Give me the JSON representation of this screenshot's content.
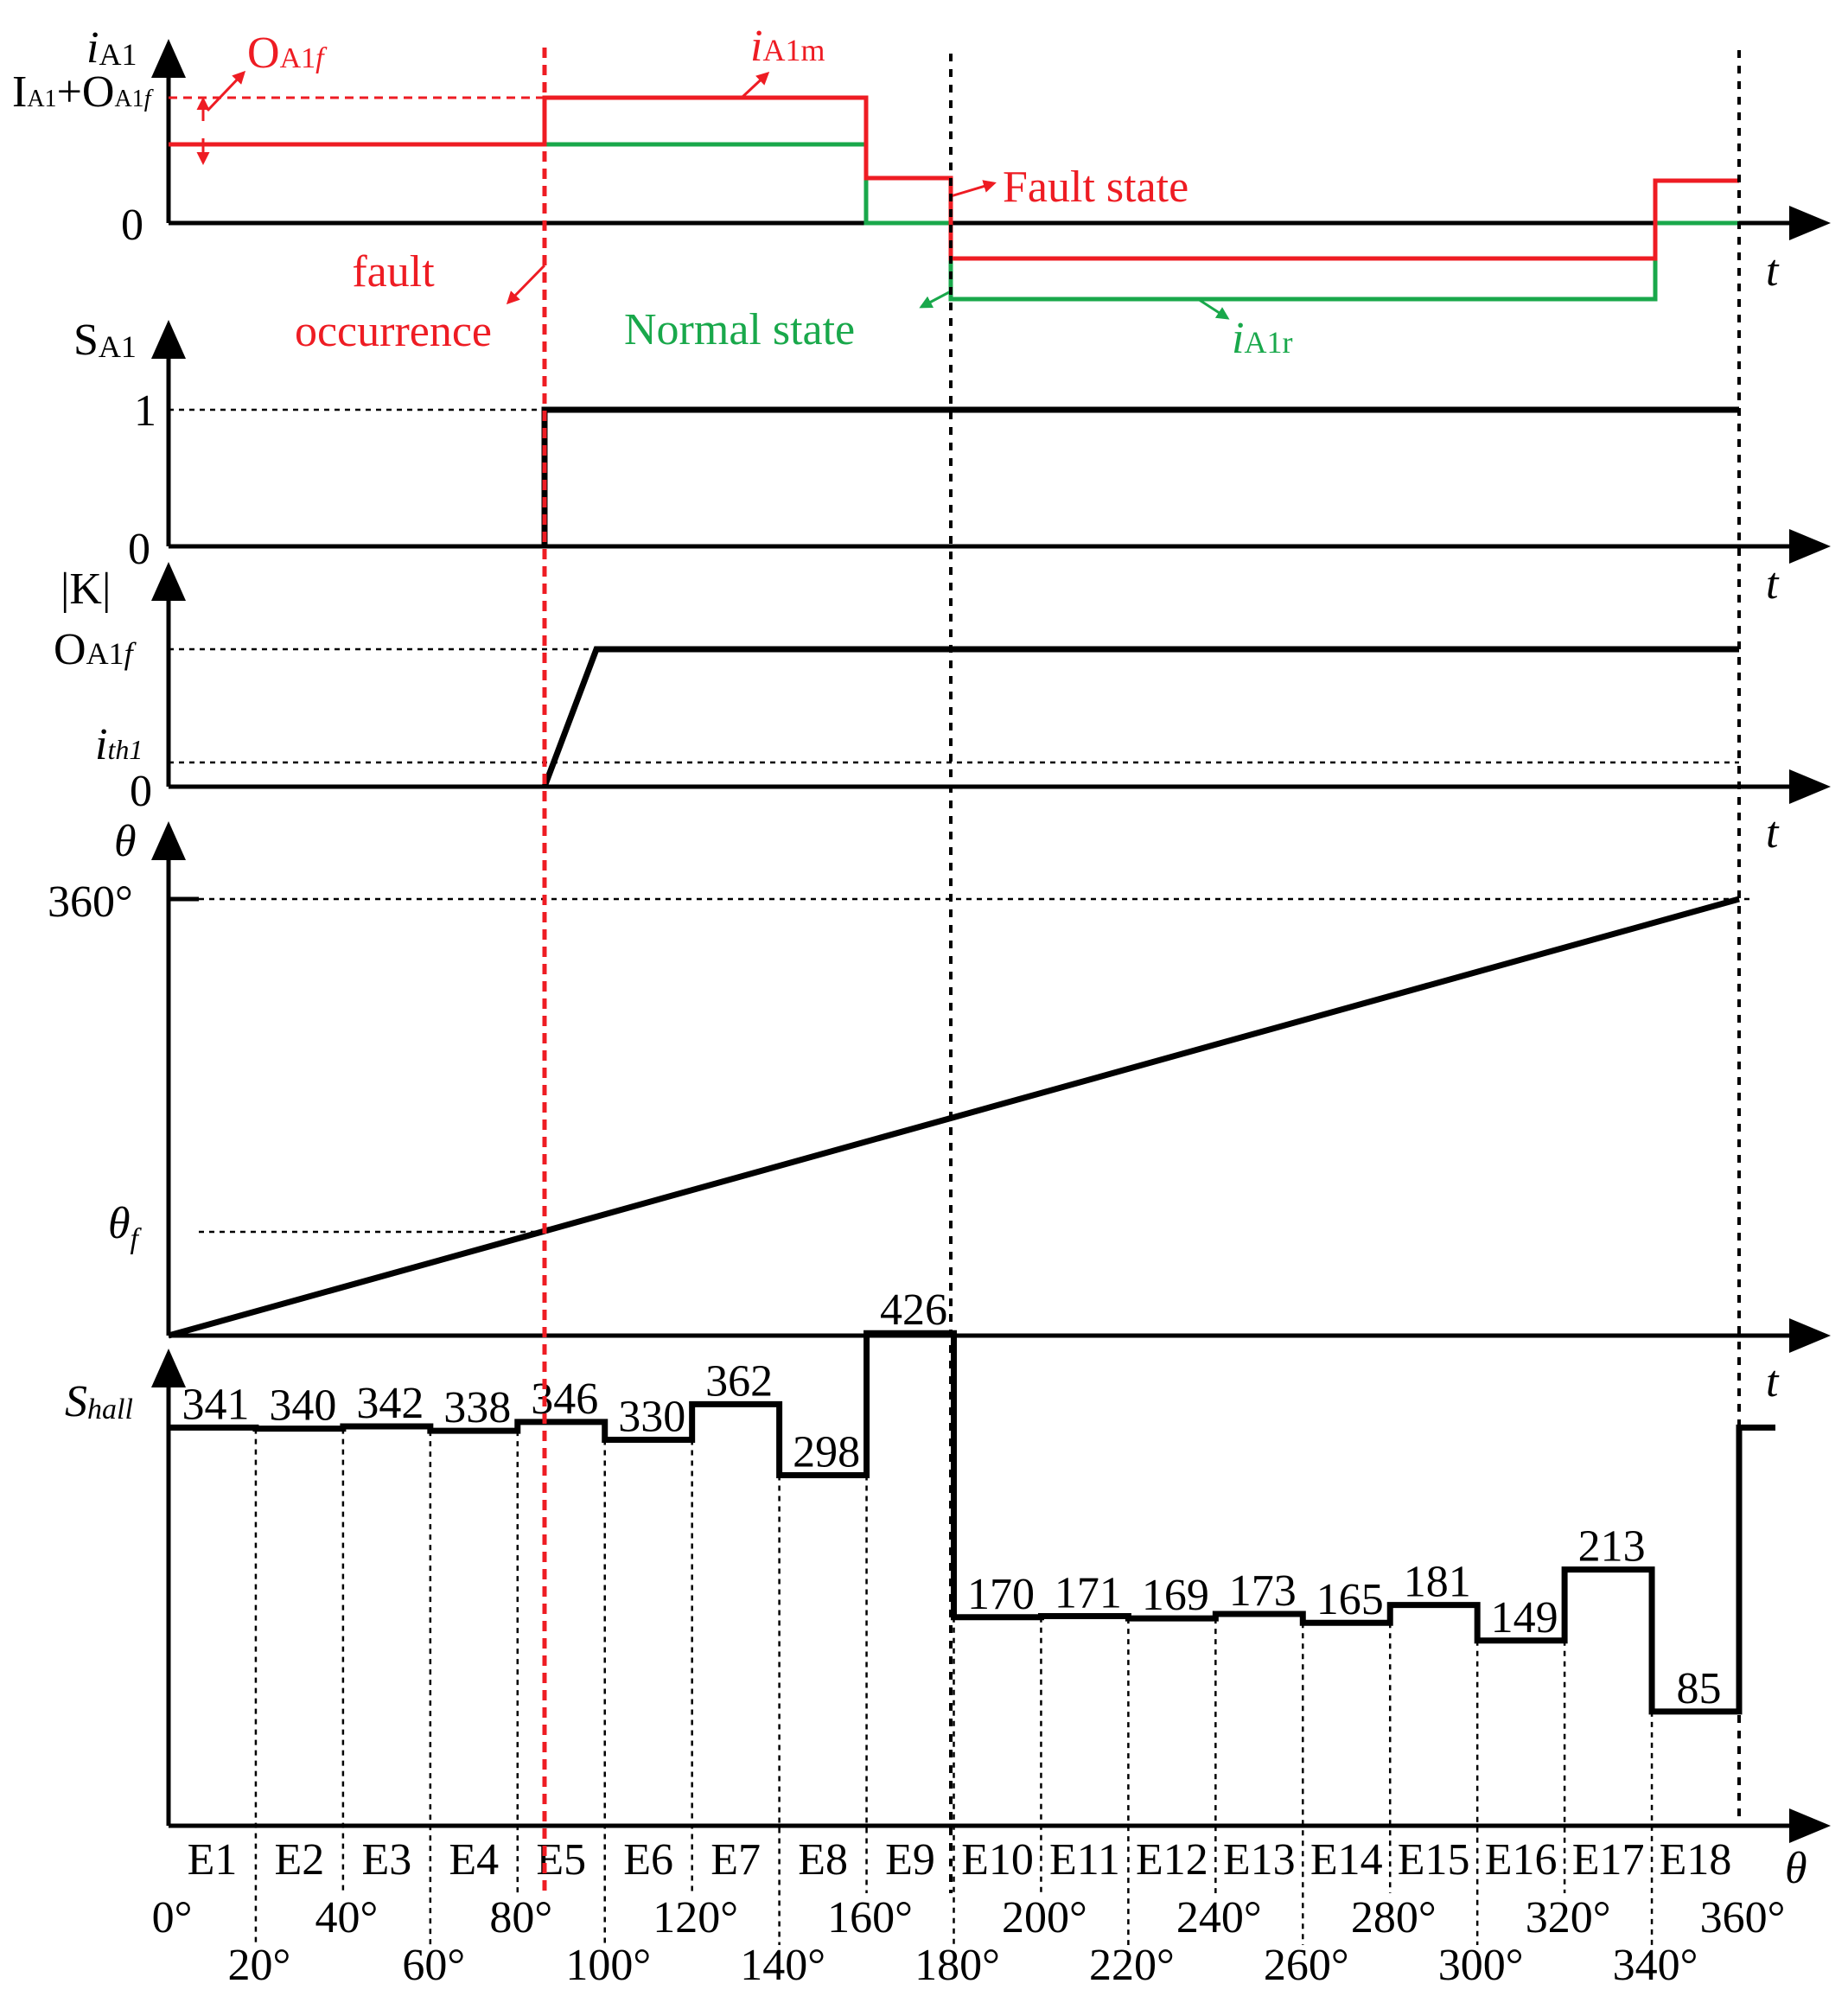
{
  "colors": {
    "fault": "#ee1c23",
    "normal": "#19a84b",
    "axis": "#000000"
  },
  "panel1": {
    "y_name": "i",
    "y_sub": "A1",
    "level_top": "I",
    "level_top_sub": "A1",
    "level_top_plus": "+O",
    "level_top_sub2": "A1",
    "level_top_f": "f",
    "zero": "0",
    "t": "t",
    "offset_label": "O",
    "offset_sub": "A1",
    "offset_f": "f",
    "iA1m": "i",
    "iA1m_sub": "A1m",
    "iA1r": "i",
    "iA1r_sub": "A1r",
    "fault_state": "Fault state",
    "normal_state": "Normal state",
    "fault_line1": "fault",
    "fault_line2": "occurrence"
  },
  "panel2": {
    "y_name": "S",
    "y_sub": "A1",
    "one": "1",
    "zero": "0",
    "t": "t"
  },
  "panel3": {
    "y_name": "|K|",
    "top_label": "O",
    "top_sub": "A1",
    "top_f": "f",
    "th_label": "i",
    "th_sub": "th1",
    "zero": "0",
    "t": "t"
  },
  "panel4": {
    "y_name": "θ",
    "top": "360°",
    "theta_f": "θ",
    "theta_f_sub": "f",
    "t": "t"
  },
  "panel5": {
    "y_name": "S",
    "y_sub": "hall",
    "x_name": "θ",
    "values": [
      "341",
      "340",
      "342",
      "338",
      "346",
      "330",
      "362",
      "298",
      "426",
      "170",
      "171",
      "169",
      "173",
      "165",
      "181",
      "149",
      "213",
      "85"
    ],
    "sectors": [
      "E1",
      "E2",
      "E3",
      "E4",
      "E5",
      "E6",
      "E7",
      "E8",
      "E9",
      "E10",
      "E11",
      "E12",
      "E13",
      "E14",
      "E15",
      "E16",
      "E17",
      "E18"
    ],
    "angles_upper": [
      "0°",
      "40°",
      "80°",
      "120°",
      "160°",
      "200°",
      "240°",
      "280°",
      "320°",
      "360°"
    ],
    "angles_lower": [
      "20°",
      "60°",
      "100°",
      "140°",
      "180°",
      "220°",
      "260°",
      "300°",
      "340°"
    ]
  }
}
